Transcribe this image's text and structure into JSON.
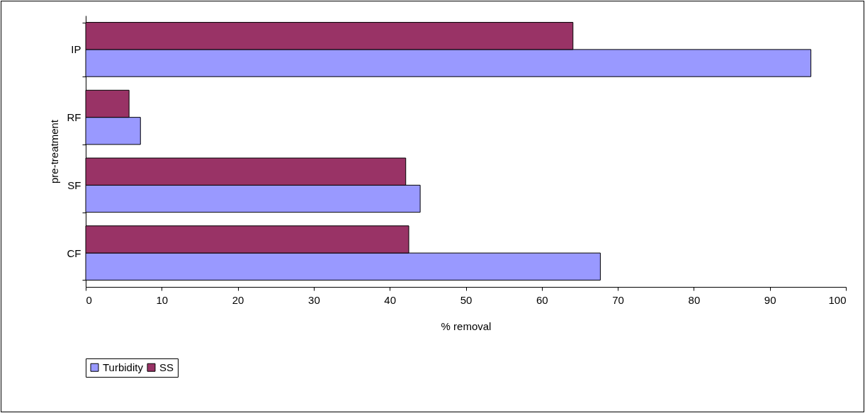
{
  "chart_data": {
    "type": "bar",
    "orientation": "horizontal",
    "xlabel": "% removal",
    "ylabel": "pre-treatment",
    "categories": [
      "IP",
      "RF",
      "SF",
      "CF"
    ],
    "series": [
      {
        "name": "Turbidity",
        "color": "#9999ff",
        "values": [
          95.4,
          7.2,
          44.0,
          67.7
        ]
      },
      {
        "name": "SS",
        "color": "#993366",
        "values": [
          64.1,
          5.7,
          42.1,
          42.5
        ]
      }
    ],
    "xlim": [
      0,
      100
    ],
    "xticks": [
      0,
      10,
      20,
      30,
      40,
      50,
      60,
      70,
      80,
      90,
      100
    ],
    "grid": false,
    "legend": "bottom"
  }
}
